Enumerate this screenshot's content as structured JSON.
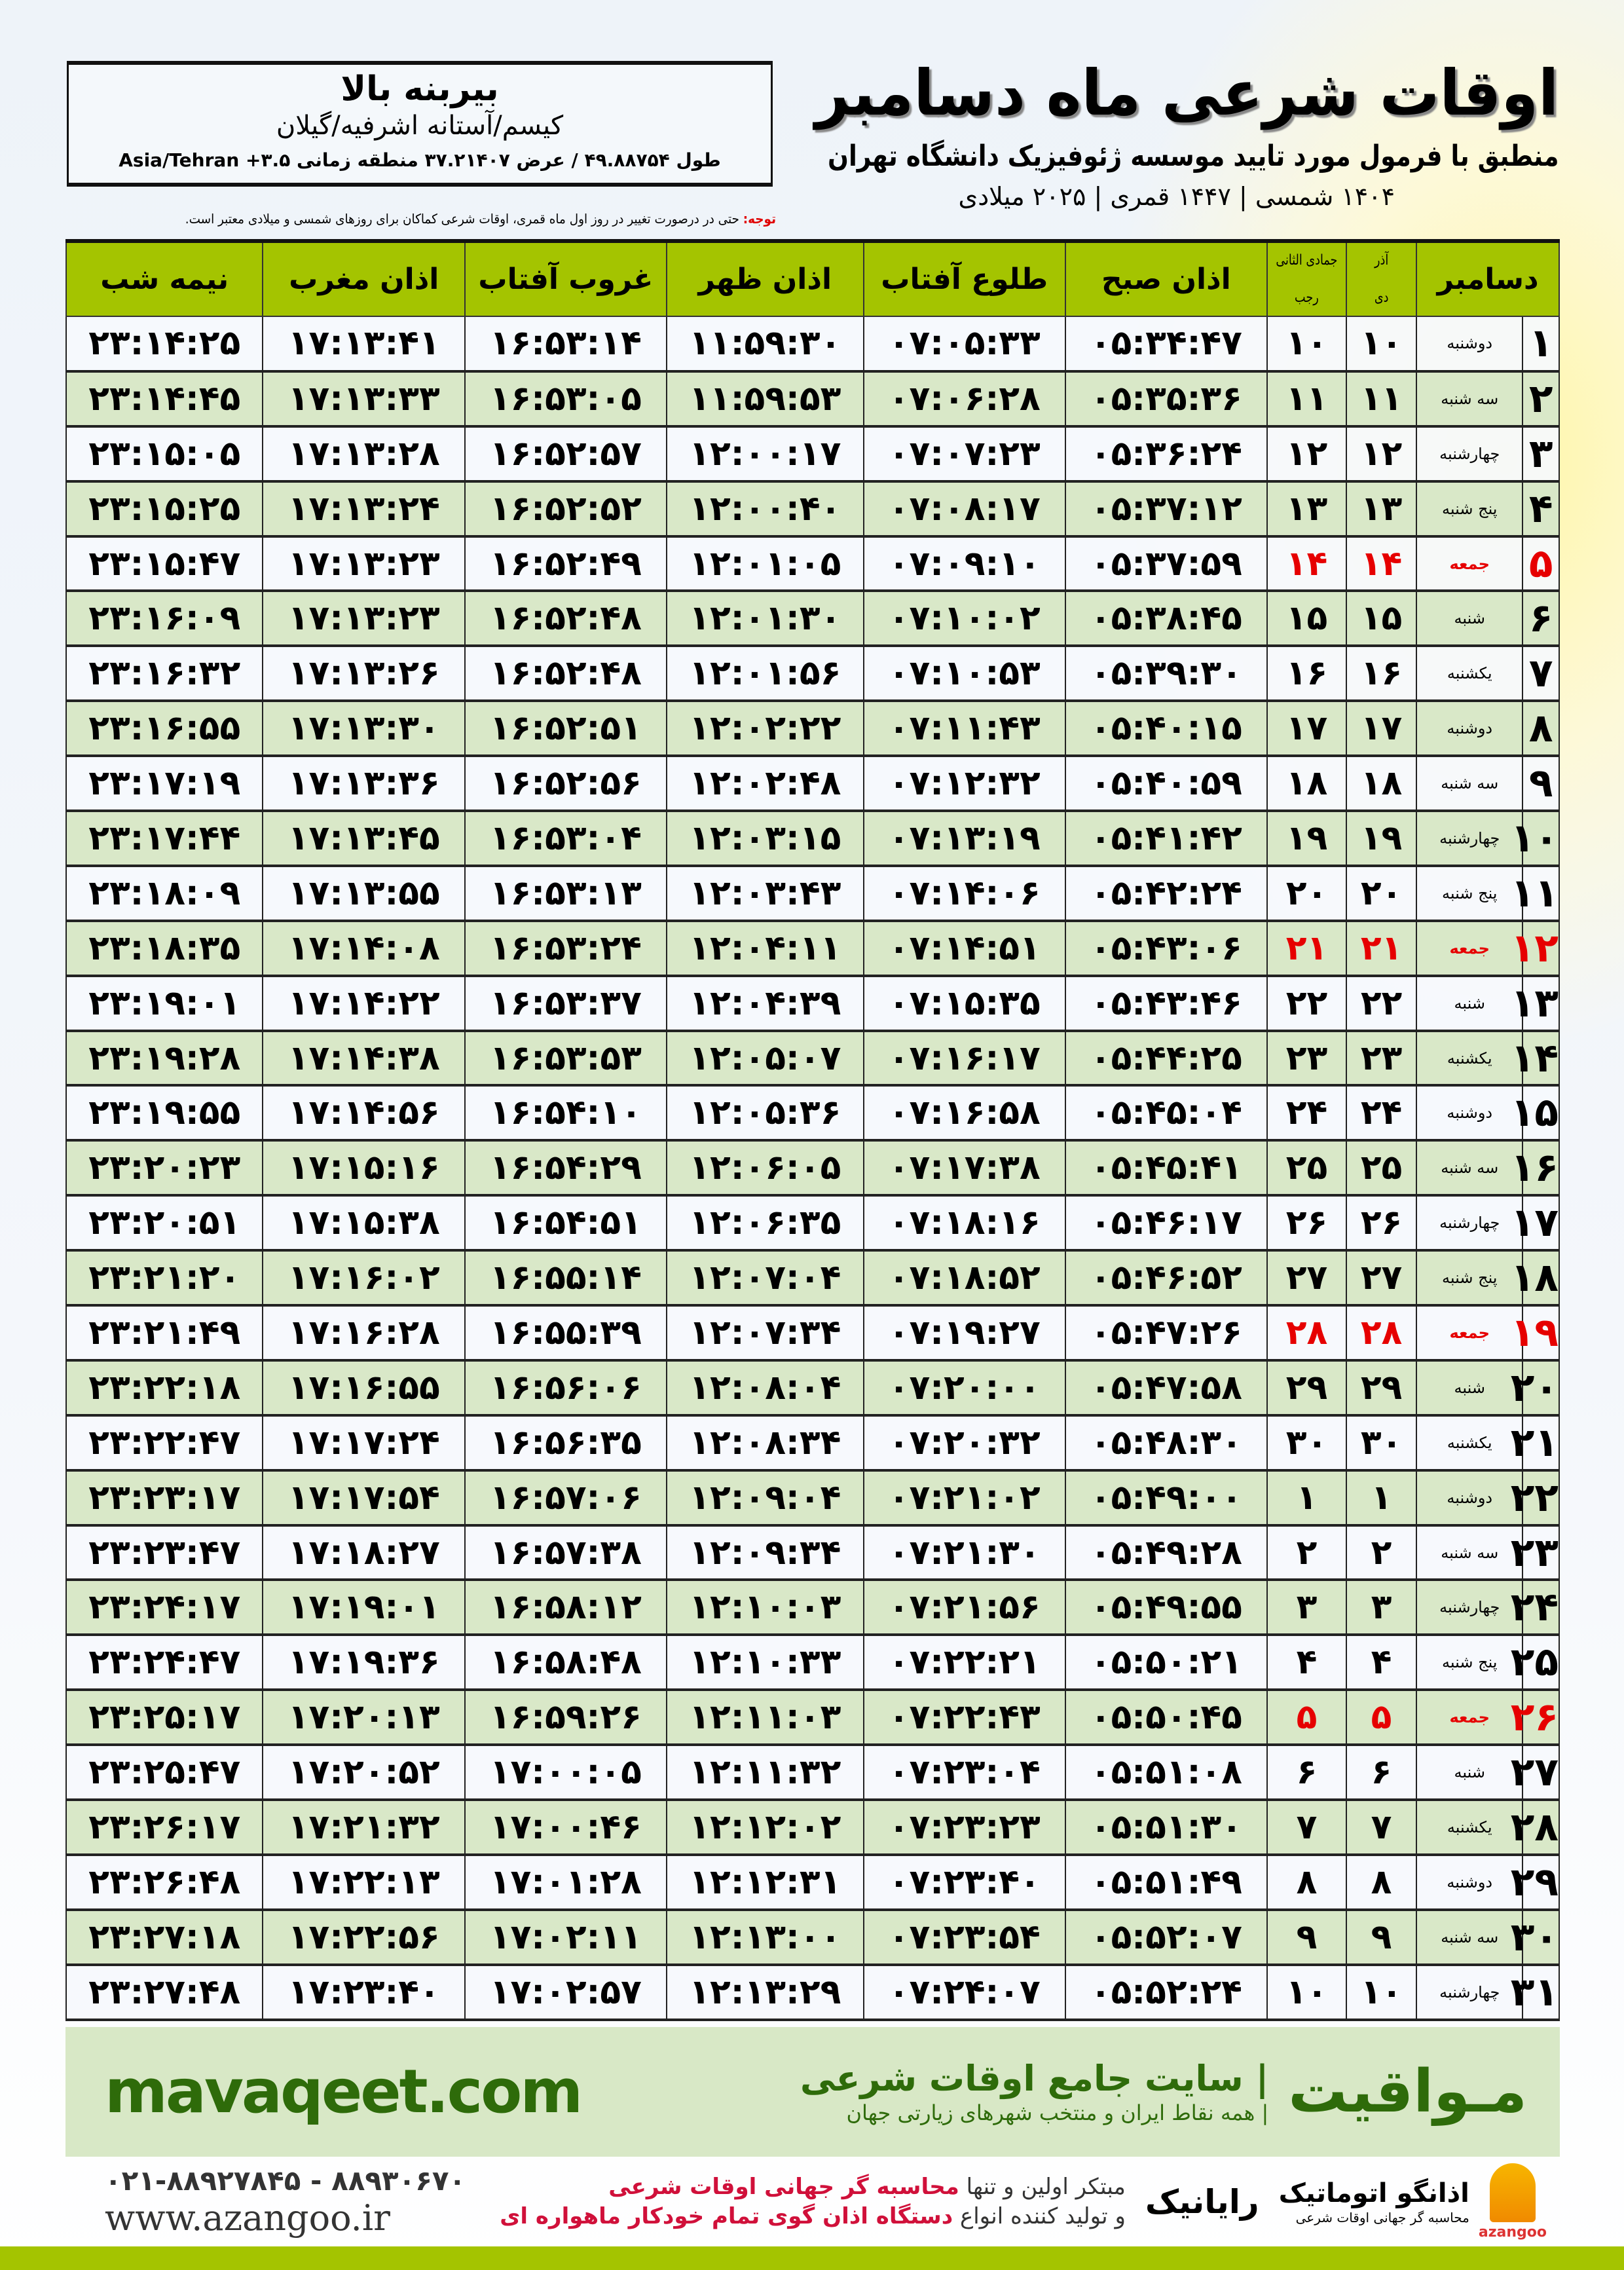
{
  "header": {
    "title": "اوقات شرعی ماه دسامبر",
    "subtitle": "منطبق با فرمول مورد تایید موسسه ژئوفیزیک دانشگاه تهران",
    "dates": "۱۴۰۴ شمسی | ۱۴۴۷ قمری | ۲۰۲۵ میلادی"
  },
  "location": {
    "name": "بیربنه بالا",
    "region": "کیسم/آستانه اشرفیه/گیلان",
    "coords": "طول ۴۹.۸۸۷۵۴ / عرض ۳۷.۲۱۴۰۷ منطقه زمانی ۳.۵+ Asia/Tehran"
  },
  "note": {
    "label": "توجه:",
    "text": " حتی در درصورت تغییر در روز اول ماه قمری، اوقات شرعی کماکان برای روزهای شمسی و میلادی معتبر است."
  },
  "table": {
    "headers": {
      "month": "دسامبر",
      "solar_month": "آذر",
      "solar_month2": "دی",
      "lunar_month": "جمادی الثانی",
      "lunar_month2": "رجب",
      "fajr": "اذان صبح",
      "sunrise": "طلوع آفتاب",
      "dhuhr": "اذان ظهر",
      "sunset": "غروب آفتاب",
      "maghrib": "اذان مغرب",
      "midnight": "نیمه شب"
    },
    "rows": [
      {
        "day": "۱",
        "weekday": "دوشنبه",
        "solar": "۱۰",
        "lunar": "۱۰",
        "fajr": "۰۵:۳۴:۴۷",
        "sunrise": "۰۷:۰۵:۳۳",
        "dhuhr": "۱۱:۵۹:۳۰",
        "sunset": "۱۶:۵۳:۱۴",
        "maghrib": "۱۷:۱۳:۴۱",
        "midnight": "۲۳:۱۴:۲۵"
      },
      {
        "day": "۲",
        "weekday": "سه شنبه",
        "solar": "۱۱",
        "lunar": "۱۱",
        "fajr": "۰۵:۳۵:۳۶",
        "sunrise": "۰۷:۰۶:۲۸",
        "dhuhr": "۱۱:۵۹:۵۳",
        "sunset": "۱۶:۵۳:۰۵",
        "maghrib": "۱۷:۱۳:۳۳",
        "midnight": "۲۳:۱۴:۴۵"
      },
      {
        "day": "۳",
        "weekday": "چهارشنبه",
        "solar": "۱۲",
        "lunar": "۱۲",
        "fajr": "۰۵:۳۶:۲۴",
        "sunrise": "۰۷:۰۷:۲۳",
        "dhuhr": "۱۲:۰۰:۱۷",
        "sunset": "۱۶:۵۲:۵۷",
        "maghrib": "۱۷:۱۳:۲۸",
        "midnight": "۲۳:۱۵:۰۵"
      },
      {
        "day": "۴",
        "weekday": "پنج شنبه",
        "solar": "۱۳",
        "lunar": "۱۳",
        "fajr": "۰۵:۳۷:۱۲",
        "sunrise": "۰۷:۰۸:۱۷",
        "dhuhr": "۱۲:۰۰:۴۰",
        "sunset": "۱۶:۵۲:۵۲",
        "maghrib": "۱۷:۱۳:۲۴",
        "midnight": "۲۳:۱۵:۲۵"
      },
      {
        "day": "۵",
        "weekday": "جمعه",
        "solar": "۱۴",
        "lunar": "۱۴",
        "fajr": "۰۵:۳۷:۵۹",
        "sunrise": "۰۷:۰۹:۱۰",
        "dhuhr": "۱۲:۰۱:۰۵",
        "sunset": "۱۶:۵۲:۴۹",
        "maghrib": "۱۷:۱۳:۲۳",
        "midnight": "۲۳:۱۵:۴۷",
        "friday": true
      },
      {
        "day": "۶",
        "weekday": "شنبه",
        "solar": "۱۵",
        "lunar": "۱۵",
        "fajr": "۰۵:۳۸:۴۵",
        "sunrise": "۰۷:۱۰:۰۲",
        "dhuhr": "۱۲:۰۱:۳۰",
        "sunset": "۱۶:۵۲:۴۸",
        "maghrib": "۱۷:۱۳:۲۳",
        "midnight": "۲۳:۱۶:۰۹"
      },
      {
        "day": "۷",
        "weekday": "یکشنبه",
        "solar": "۱۶",
        "lunar": "۱۶",
        "fajr": "۰۵:۳۹:۳۰",
        "sunrise": "۰۷:۱۰:۵۳",
        "dhuhr": "۱۲:۰۱:۵۶",
        "sunset": "۱۶:۵۲:۴۸",
        "maghrib": "۱۷:۱۳:۲۶",
        "midnight": "۲۳:۱۶:۳۲"
      },
      {
        "day": "۸",
        "weekday": "دوشنبه",
        "solar": "۱۷",
        "lunar": "۱۷",
        "fajr": "۰۵:۴۰:۱۵",
        "sunrise": "۰۷:۱۱:۴۳",
        "dhuhr": "۱۲:۰۲:۲۲",
        "sunset": "۱۶:۵۲:۵۱",
        "maghrib": "۱۷:۱۳:۳۰",
        "midnight": "۲۳:۱۶:۵۵"
      },
      {
        "day": "۹",
        "weekday": "سه شنبه",
        "solar": "۱۸",
        "lunar": "۱۸",
        "fajr": "۰۵:۴۰:۵۹",
        "sunrise": "۰۷:۱۲:۳۲",
        "dhuhr": "۱۲:۰۲:۴۸",
        "sunset": "۱۶:۵۲:۵۶",
        "maghrib": "۱۷:۱۳:۳۶",
        "midnight": "۲۳:۱۷:۱۹"
      },
      {
        "day": "۱۰",
        "weekday": "چهارشنبه",
        "solar": "۱۹",
        "lunar": "۱۹",
        "fajr": "۰۵:۴۱:۴۲",
        "sunrise": "۰۷:۱۳:۱۹",
        "dhuhr": "۱۲:۰۳:۱۵",
        "sunset": "۱۶:۵۳:۰۴",
        "maghrib": "۱۷:۱۳:۴۵",
        "midnight": "۲۳:۱۷:۴۴"
      },
      {
        "day": "۱۱",
        "weekday": "پنج شنبه",
        "solar": "۲۰",
        "lunar": "۲۰",
        "fajr": "۰۵:۴۲:۲۴",
        "sunrise": "۰۷:۱۴:۰۶",
        "dhuhr": "۱۲:۰۳:۴۳",
        "sunset": "۱۶:۵۳:۱۳",
        "maghrib": "۱۷:۱۳:۵۵",
        "midnight": "۲۳:۱۸:۰۹"
      },
      {
        "day": "۱۲",
        "weekday": "جمعه",
        "solar": "۲۱",
        "lunar": "۲۱",
        "fajr": "۰۵:۴۳:۰۶",
        "sunrise": "۰۷:۱۴:۵۱",
        "dhuhr": "۱۲:۰۴:۱۱",
        "sunset": "۱۶:۵۳:۲۴",
        "maghrib": "۱۷:۱۴:۰۸",
        "midnight": "۲۳:۱۸:۳۵",
        "friday": true
      },
      {
        "day": "۱۳",
        "weekday": "شنبه",
        "solar": "۲۲",
        "lunar": "۲۲",
        "fajr": "۰۵:۴۳:۴۶",
        "sunrise": "۰۷:۱۵:۳۵",
        "dhuhr": "۱۲:۰۴:۳۹",
        "sunset": "۱۶:۵۳:۳۷",
        "maghrib": "۱۷:۱۴:۲۲",
        "midnight": "۲۳:۱۹:۰۱"
      },
      {
        "day": "۱۴",
        "weekday": "یکشنبه",
        "solar": "۲۳",
        "lunar": "۲۳",
        "fajr": "۰۵:۴۴:۲۵",
        "sunrise": "۰۷:۱۶:۱۷",
        "dhuhr": "۱۲:۰۵:۰۷",
        "sunset": "۱۶:۵۳:۵۳",
        "maghrib": "۱۷:۱۴:۳۸",
        "midnight": "۲۳:۱۹:۲۸"
      },
      {
        "day": "۱۵",
        "weekday": "دوشنبه",
        "solar": "۲۴",
        "lunar": "۲۴",
        "fajr": "۰۵:۴۵:۰۴",
        "sunrise": "۰۷:۱۶:۵۸",
        "dhuhr": "۱۲:۰۵:۳۶",
        "sunset": "۱۶:۵۴:۱۰",
        "maghrib": "۱۷:۱۴:۵۶",
        "midnight": "۲۳:۱۹:۵۵"
      },
      {
        "day": "۱۶",
        "weekday": "سه شنبه",
        "solar": "۲۵",
        "lunar": "۲۵",
        "fajr": "۰۵:۴۵:۴۱",
        "sunrise": "۰۷:۱۷:۳۸",
        "dhuhr": "۱۲:۰۶:۰۵",
        "sunset": "۱۶:۵۴:۲۹",
        "maghrib": "۱۷:۱۵:۱۶",
        "midnight": "۲۳:۲۰:۲۳"
      },
      {
        "day": "۱۷",
        "weekday": "چهارشنبه",
        "solar": "۲۶",
        "lunar": "۲۶",
        "fajr": "۰۵:۴۶:۱۷",
        "sunrise": "۰۷:۱۸:۱۶",
        "dhuhr": "۱۲:۰۶:۳۵",
        "sunset": "۱۶:۵۴:۵۱",
        "maghrib": "۱۷:۱۵:۳۸",
        "midnight": "۲۳:۲۰:۵۱"
      },
      {
        "day": "۱۸",
        "weekday": "پنج شنبه",
        "solar": "۲۷",
        "lunar": "۲۷",
        "fajr": "۰۵:۴۶:۵۲",
        "sunrise": "۰۷:۱۸:۵۲",
        "dhuhr": "۱۲:۰۷:۰۴",
        "sunset": "۱۶:۵۵:۱۴",
        "maghrib": "۱۷:۱۶:۰۲",
        "midnight": "۲۳:۲۱:۲۰"
      },
      {
        "day": "۱۹",
        "weekday": "جمعه",
        "solar": "۲۸",
        "lunar": "۲۸",
        "fajr": "۰۵:۴۷:۲۶",
        "sunrise": "۰۷:۱۹:۲۷",
        "dhuhr": "۱۲:۰۷:۳۴",
        "sunset": "۱۶:۵۵:۳۹",
        "maghrib": "۱۷:۱۶:۲۸",
        "midnight": "۲۳:۲۱:۴۹",
        "friday": true
      },
      {
        "day": "۲۰",
        "weekday": "شنبه",
        "solar": "۲۹",
        "lunar": "۲۹",
        "fajr": "۰۵:۴۷:۵۸",
        "sunrise": "۰۷:۲۰:۰۰",
        "dhuhr": "۱۲:۰۸:۰۴",
        "sunset": "۱۶:۵۶:۰۶",
        "maghrib": "۱۷:۱۶:۵۵",
        "midnight": "۲۳:۲۲:۱۸"
      },
      {
        "day": "۲۱",
        "weekday": "یکشنبه",
        "solar": "۳۰",
        "lunar": "۳۰",
        "fajr": "۰۵:۴۸:۳۰",
        "sunrise": "۰۷:۲۰:۳۲",
        "dhuhr": "۱۲:۰۸:۳۴",
        "sunset": "۱۶:۵۶:۳۵",
        "maghrib": "۱۷:۱۷:۲۴",
        "midnight": "۲۳:۲۲:۴۷"
      },
      {
        "day": "۲۲",
        "weekday": "دوشنبه",
        "solar": "۱",
        "lunar": "۱",
        "fajr": "۰۵:۴۹:۰۰",
        "sunrise": "۰۷:۲۱:۰۲",
        "dhuhr": "۱۲:۰۹:۰۴",
        "sunset": "۱۶:۵۷:۰۶",
        "maghrib": "۱۷:۱۷:۵۴",
        "midnight": "۲۳:۲۳:۱۷"
      },
      {
        "day": "۲۳",
        "weekday": "سه شنبه",
        "solar": "۲",
        "lunar": "۲",
        "fajr": "۰۵:۴۹:۲۸",
        "sunrise": "۰۷:۲۱:۳۰",
        "dhuhr": "۱۲:۰۹:۳۴",
        "sunset": "۱۶:۵۷:۳۸",
        "maghrib": "۱۷:۱۸:۲۷",
        "midnight": "۲۳:۲۳:۴۷"
      },
      {
        "day": "۲۴",
        "weekday": "چهارشنبه",
        "solar": "۳",
        "lunar": "۳",
        "fajr": "۰۵:۴۹:۵۵",
        "sunrise": "۰۷:۲۱:۵۶",
        "dhuhr": "۱۲:۱۰:۰۳",
        "sunset": "۱۶:۵۸:۱۲",
        "maghrib": "۱۷:۱۹:۰۱",
        "midnight": "۲۳:۲۴:۱۷"
      },
      {
        "day": "۲۵",
        "weekday": "پنج شنبه",
        "solar": "۴",
        "lunar": "۴",
        "fajr": "۰۵:۵۰:۲۱",
        "sunrise": "۰۷:۲۲:۲۱",
        "dhuhr": "۱۲:۱۰:۳۳",
        "sunset": "۱۶:۵۸:۴۸",
        "maghrib": "۱۷:۱۹:۳۶",
        "midnight": "۲۳:۲۴:۴۷"
      },
      {
        "day": "۲۶",
        "weekday": "جمعه",
        "solar": "۵",
        "lunar": "۵",
        "fajr": "۰۵:۵۰:۴۵",
        "sunrise": "۰۷:۲۲:۴۳",
        "dhuhr": "۱۲:۱۱:۰۳",
        "sunset": "۱۶:۵۹:۲۶",
        "maghrib": "۱۷:۲۰:۱۳",
        "midnight": "۲۳:۲۵:۱۷",
        "friday": true
      },
      {
        "day": "۲۷",
        "weekday": "شنبه",
        "solar": "۶",
        "lunar": "۶",
        "fajr": "۰۵:۵۱:۰۸",
        "sunrise": "۰۷:۲۳:۰۴",
        "dhuhr": "۱۲:۱۱:۳۲",
        "sunset": "۱۷:۰۰:۰۵",
        "maghrib": "۱۷:۲۰:۵۲",
        "midnight": "۲۳:۲۵:۴۷"
      },
      {
        "day": "۲۸",
        "weekday": "یکشنبه",
        "solar": "۷",
        "lunar": "۷",
        "fajr": "۰۵:۵۱:۳۰",
        "sunrise": "۰۷:۲۳:۲۳",
        "dhuhr": "۱۲:۱۲:۰۲",
        "sunset": "۱۷:۰۰:۴۶",
        "maghrib": "۱۷:۲۱:۳۲",
        "midnight": "۲۳:۲۶:۱۷"
      },
      {
        "day": "۲۹",
        "weekday": "دوشنبه",
        "solar": "۸",
        "lunar": "۸",
        "fajr": "۰۵:۵۱:۴۹",
        "sunrise": "۰۷:۲۳:۴۰",
        "dhuhr": "۱۲:۱۲:۳۱",
        "sunset": "۱۷:۰۱:۲۸",
        "maghrib": "۱۷:۲۲:۱۳",
        "midnight": "۲۳:۲۶:۴۸"
      },
      {
        "day": "۳۰",
        "weekday": "سه شنبه",
        "solar": "۹",
        "lunar": "۹",
        "fajr": "۰۵:۵۲:۰۷",
        "sunrise": "۰۷:۲۳:۵۴",
        "dhuhr": "۱۲:۱۳:۰۰",
        "sunset": "۱۷:۰۲:۱۱",
        "maghrib": "۱۷:۲۲:۵۶",
        "midnight": "۲۳:۲۷:۱۸"
      },
      {
        "day": "۳۱",
        "weekday": "چهارشنبه",
        "solar": "۱۰",
        "lunar": "۱۰",
        "fajr": "۰۵:۵۲:۲۴",
        "sunrise": "۰۷:۲۴:۰۷",
        "dhuhr": "۱۲:۱۳:۲۹",
        "sunset": "۱۷:۰۲:۵۷",
        "maghrib": "۱۷:۲۳:۴۰",
        "midnight": "۲۳:۲۷:۴۸"
      }
    ]
  },
  "footer": {
    "url": "mavaqeet.com",
    "brand": "مـواقیت",
    "tagline": "| سایت جامع اوقات شرعی",
    "sub": "| همه نقاط ایران و منتخب شهرهای زیارتی جهان",
    "phones": "۰۲۱-۸۸۹۲۷۸۴۵ - ۸۸۹۳۰۶۷۰",
    "web": "www.azangoo.ir",
    "promo1a": "مبتکر اولین و تنها ",
    "promo1b": "محاسبه گر جهانی اوقات شرعی",
    "promo2a": "و تولید کننده انواع ",
    "promo2b": "دستگاه اذان گوی تمام خودکار ماهواره ای",
    "rayanik": "رایانیک",
    "azangoo": "اذانگو اتوماتیک",
    "azangoo_sub": "محاسبه گر جهانی اوقات شرعی",
    "azangoo_latin": "azangoo"
  },
  "colors": {
    "header_green": "#a4c400",
    "row_green": "#d9e8c8",
    "friday_red": "#e60000",
    "brand_green": "#2e6b0a"
  }
}
